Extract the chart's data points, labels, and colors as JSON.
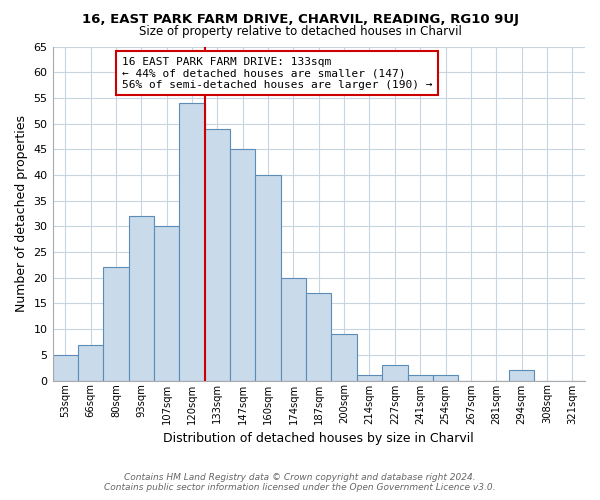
{
  "title": "16, EAST PARK FARM DRIVE, CHARVIL, READING, RG10 9UJ",
  "subtitle": "Size of property relative to detached houses in Charvil",
  "xlabel": "Distribution of detached houses by size in Charvil",
  "ylabel": "Number of detached properties",
  "bin_labels": [
    "53sqm",
    "66sqm",
    "80sqm",
    "93sqm",
    "107sqm",
    "120sqm",
    "133sqm",
    "147sqm",
    "160sqm",
    "174sqm",
    "187sqm",
    "200sqm",
    "214sqm",
    "227sqm",
    "241sqm",
    "254sqm",
    "267sqm",
    "281sqm",
    "294sqm",
    "308sqm",
    "321sqm"
  ],
  "counts": [
    5,
    7,
    22,
    32,
    30,
    54,
    49,
    45,
    40,
    20,
    17,
    9,
    1,
    3,
    1,
    1,
    0,
    0,
    2,
    0,
    0
  ],
  "bar_color": "#c9daea",
  "bar_edge_color": "#5b8db8",
  "vline_x_idx": 6,
  "vline_color": "#cc0000",
  "annotation_line1": "16 EAST PARK FARM DRIVE: 133sqm",
  "annotation_line2": "← 44% of detached houses are smaller (147)",
  "annotation_line3": "56% of semi-detached houses are larger (190) →",
  "annotation_box_color": "#ffffff",
  "annotation_box_edge": "#cc0000",
  "ylim": [
    0,
    65
  ],
  "yticks": [
    0,
    5,
    10,
    15,
    20,
    25,
    30,
    35,
    40,
    45,
    50,
    55,
    60,
    65
  ],
  "footer_line1": "Contains HM Land Registry data © Crown copyright and database right 2024.",
  "footer_line2": "Contains public sector information licensed under the Open Government Licence v3.0.",
  "bg_color": "#ffffff",
  "grid_color": "#c8d4de"
}
